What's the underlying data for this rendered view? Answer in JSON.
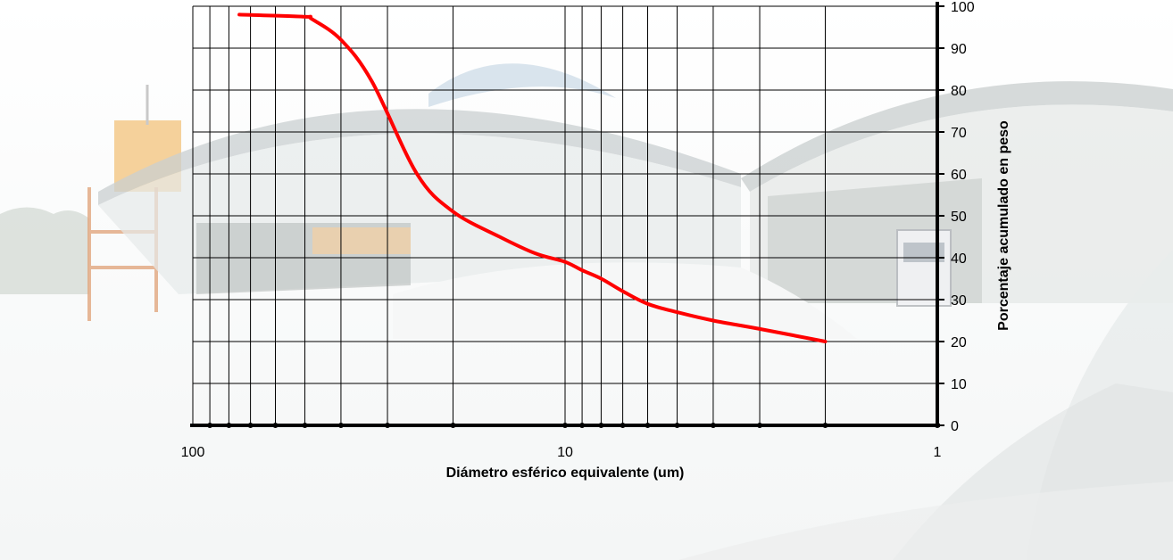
{
  "chart_data": {
    "type": "line",
    "title": "",
    "xlabel": "Diámetro esférico equivalente (um)",
    "ylabel": "Porcentaje acumulado en peso",
    "x_scale": "log",
    "x_reversed": true,
    "xlim": [
      100,
      1
    ],
    "ylim": [
      0,
      100
    ],
    "x_tick_labels": [
      "100",
      "10",
      "1"
    ],
    "y_tick_labels": [
      "0",
      "10",
      "20",
      "30",
      "40",
      "50",
      "60",
      "70",
      "80",
      "90",
      "100"
    ],
    "grid": true,
    "series": [
      {
        "color": "#ff0000",
        "x": [
          75,
          50,
          48,
          40,
          33,
          25,
          20,
          15,
          12,
          10,
          9,
          8,
          7,
          6,
          5,
          4,
          3,
          2
        ],
        "y": [
          98,
          97.5,
          97,
          92,
          82,
          60,
          51,
          45,
          41,
          39,
          37,
          35,
          32,
          29,
          27,
          25,
          23,
          20
        ]
      }
    ]
  },
  "colors": {
    "line": "#ff0000",
    "axis": "#000000",
    "grid": "#000000"
  }
}
